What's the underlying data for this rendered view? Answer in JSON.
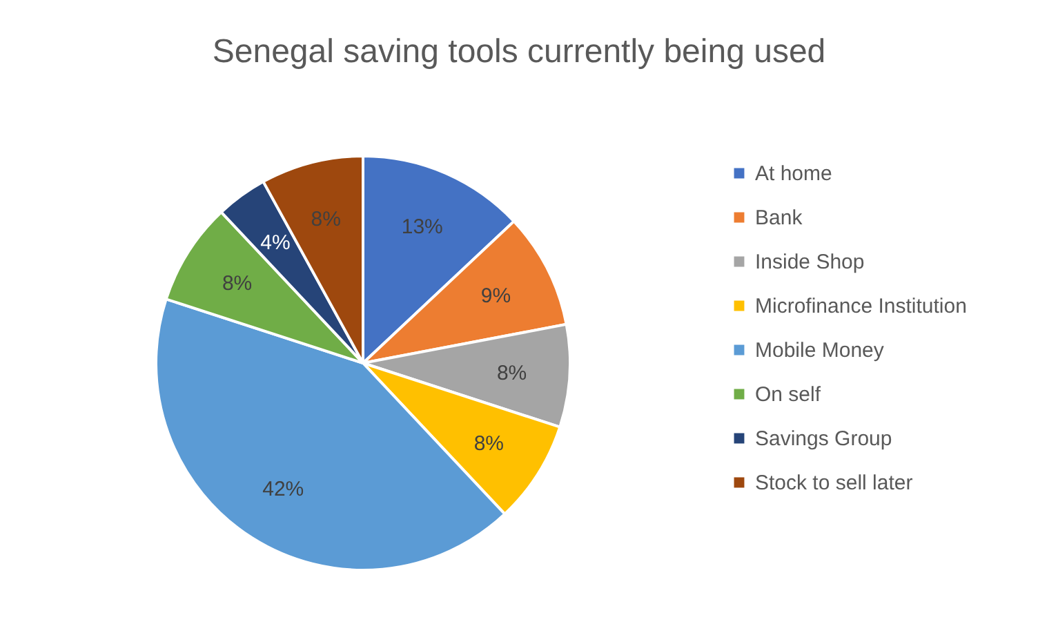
{
  "chart_data": {
    "type": "pie",
    "title": "Senegal saving tools currently being used",
    "categories": [
      "At home",
      "Bank",
      "Inside Shop",
      "Microfinance Institution",
      "Mobile Money",
      "On self",
      "Savings Group",
      "Stock to sell later"
    ],
    "values": [
      13,
      9,
      8,
      8,
      42,
      8,
      4,
      8
    ],
    "value_labels": [
      "13%",
      "9%",
      "8%",
      "8%",
      "42%",
      "8%",
      "4%",
      "8%"
    ],
    "colors": [
      "#4472c4",
      "#ed7d31",
      "#a5a5a5",
      "#ffc000",
      "#5b9bd5",
      "#70ad47",
      "#264478",
      "#9e480e"
    ],
    "legend": "right"
  }
}
